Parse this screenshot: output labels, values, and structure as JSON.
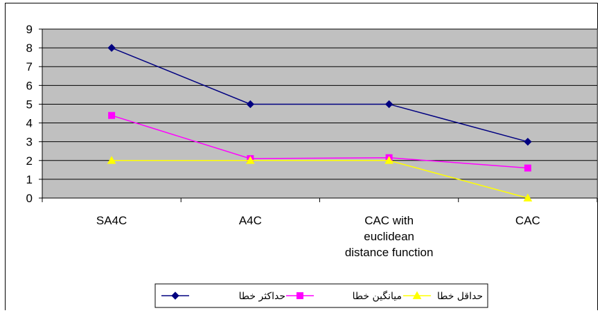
{
  "chart_data": {
    "type": "line",
    "categories": [
      "SA4C",
      "A4C",
      "CAC with euclidean distance function",
      "CAC"
    ],
    "category_lines": [
      [
        "SA4C"
      ],
      [
        "A4C"
      ],
      [
        "CAC with",
        "euclidean",
        "distance function"
      ],
      [
        "CAC"
      ]
    ],
    "ylim": [
      0,
      9
    ],
    "yticks": [
      0,
      1,
      2,
      3,
      4,
      5,
      6,
      7,
      8,
      9
    ],
    "grid": true,
    "legend_position": "bottom",
    "plot_background": "#C0C0C0",
    "series": [
      {
        "name": "حداکثر خطا",
        "color": "#000080",
        "marker": "diamond",
        "values": [
          8,
          5,
          5,
          3
        ]
      },
      {
        "name": "میانگین خطا",
        "color": "#FF00FF",
        "marker": "square",
        "values": [
          4.4,
          2.1,
          2.15,
          1.6
        ]
      },
      {
        "name": "حداقل خطا",
        "color": "#FFFF00",
        "marker": "triangle",
        "values": [
          2,
          2,
          2,
          0
        ]
      }
    ]
  }
}
